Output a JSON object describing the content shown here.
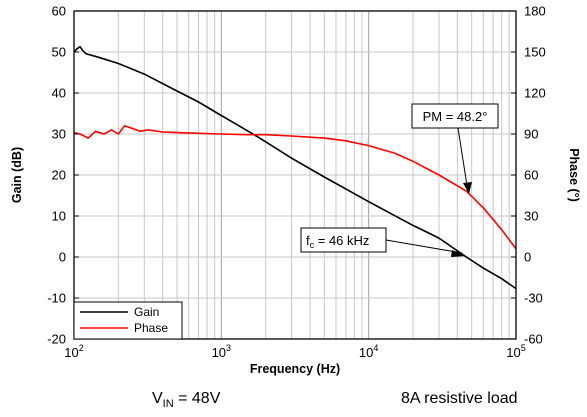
{
  "chart_data": {
    "type": "line",
    "xlabel": "Frequency (Hz)",
    "ylabel": "Gain (dB)",
    "y2label": "Phase (°)",
    "x_scale": "log",
    "xlim": [
      100,
      100000
    ],
    "ylim": [
      -20,
      60
    ],
    "y2lim": [
      -60,
      180
    ],
    "x_ticks": [
      {
        "base": "10",
        "exp": "2"
      },
      {
        "base": "10",
        "exp": "3"
      },
      {
        "base": "10",
        "exp": "4"
      },
      {
        "base": "10",
        "exp": "5"
      }
    ],
    "y_ticks": [
      "60",
      "50",
      "40",
      "30",
      "20",
      "10",
      "0",
      "-10",
      "-20"
    ],
    "y2_ticks": [
      "180",
      "150",
      "120",
      "90",
      "60",
      "30",
      "0",
      "-30",
      "-60"
    ],
    "grid": true,
    "legend_position": "bottom-left",
    "series": [
      {
        "name": "Gain",
        "axis": "left",
        "color": "#000000",
        "x": [
          100,
          105,
          110,
          115,
          120,
          150,
          200,
          300,
          500,
          700,
          1000,
          1500,
          2000,
          3000,
          5000,
          7000,
          10000,
          15000,
          20000,
          30000,
          46000,
          60000,
          80000,
          100000
        ],
        "y": [
          50,
          50.8,
          51.3,
          50.3,
          49.6,
          48.6,
          47.2,
          44.6,
          40.5,
          37.8,
          34.5,
          30.8,
          28.1,
          24.1,
          19.5,
          16.6,
          13.5,
          10.1,
          7.7,
          4.6,
          0,
          -2.7,
          -5.3,
          -7.7
        ]
      },
      {
        "name": "Phase",
        "axis": "right",
        "color": "#ff0000",
        "x": [
          100,
          110,
          125,
          140,
          160,
          180,
          200,
          220,
          250,
          280,
          320,
          400,
          500,
          700,
          1000,
          1500,
          2000,
          3000,
          5000,
          7000,
          10000,
          15000,
          20000,
          30000,
          46000,
          60000,
          80000,
          100000
        ],
        "y": [
          91,
          90,
          87,
          92,
          90,
          93,
          90,
          96,
          94,
          92,
          93,
          91.5,
          91,
          90.5,
          90,
          89.5,
          89.5,
          88.5,
          87,
          85,
          81.5,
          76,
          70,
          60,
          48.2,
          36,
          20,
          6
        ]
      }
    ],
    "annotations": [
      {
        "text": "PM = 48.2°",
        "x": 46000,
        "y2": 48.2
      },
      {
        "prefix": "f",
        "sub": "c",
        "suffix": " = 46 kHz",
        "x": 46000,
        "y": 0
      }
    ]
  },
  "captions": {
    "vin_base": "V",
    "vin_sub": "IN",
    "vin_value": " = 48V",
    "load": "8A resistive load"
  }
}
